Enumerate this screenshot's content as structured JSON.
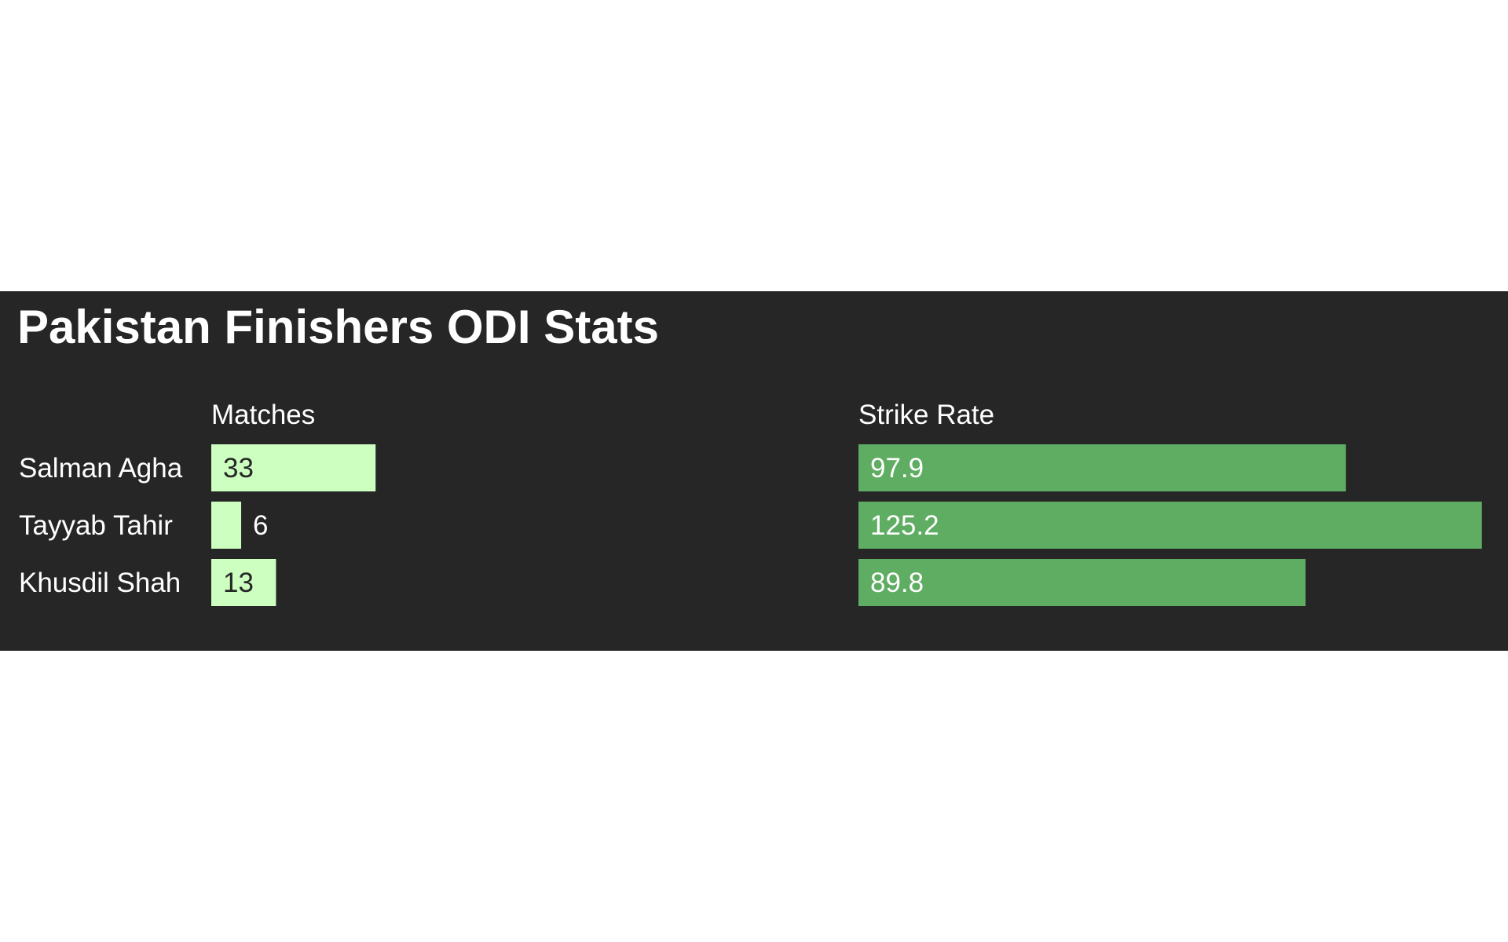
{
  "chart_data": {
    "type": "bar",
    "title": "Pakistan Finishers ODI Stats",
    "categories": [
      "Salman Agha",
      "Tayyab Tahir",
      "Khusdil Shah"
    ],
    "series": [
      {
        "name": "Matches",
        "values": [
          33,
          6,
          13
        ],
        "color": "#ccffc0",
        "label_color": "#262626",
        "max": 125.2
      },
      {
        "name": "Strike Rate",
        "values": [
          97.9,
          125.2,
          89.8
        ],
        "color": "#5fad62",
        "label_color": "#ffffff",
        "max": 125.2
      }
    ],
    "orientation": "horizontal",
    "grid": false,
    "legend": "none"
  },
  "colors": {
    "background": "#262626",
    "page": "#ffffff",
    "text": "#ffffff"
  }
}
